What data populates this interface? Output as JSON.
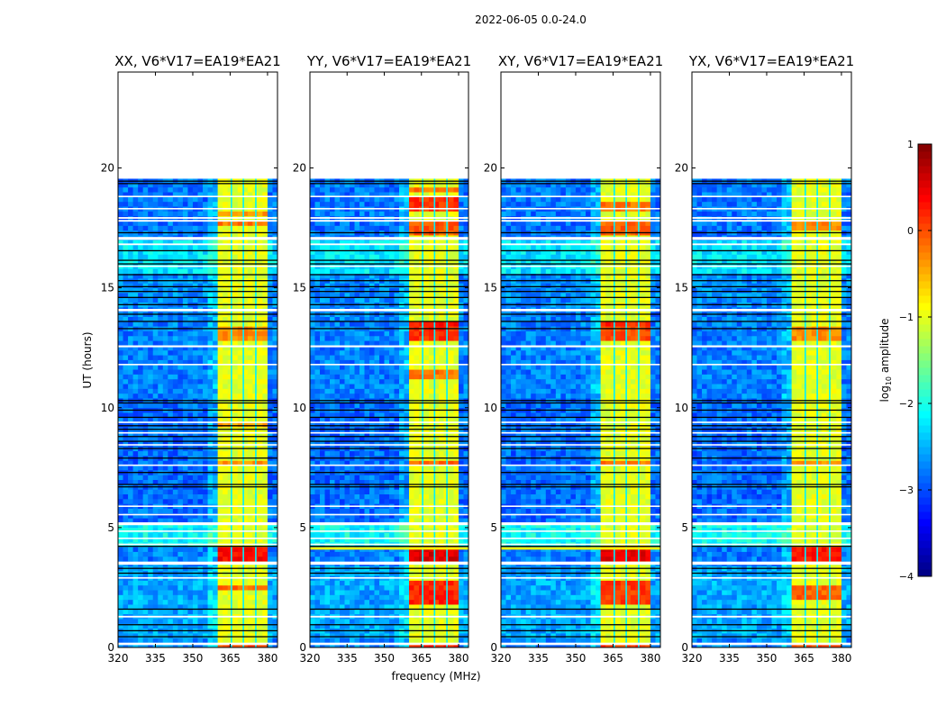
{
  "chart_data": {
    "type": "heatmap",
    "suptitle": "2022-06-05 0.0-24.0",
    "xlabel": "frequency (MHz)",
    "ylabel": "UT (hours)",
    "xlim": [
      320,
      384
    ],
    "ylim": [
      0,
      24
    ],
    "xticks": [
      "320",
      "335",
      "350",
      "365",
      "380"
    ],
    "xtick_values": [
      320,
      335,
      350,
      365,
      380
    ],
    "yticks": [
      "0",
      "5",
      "10",
      "15",
      "20"
    ],
    "ytick_values": [
      0,
      5,
      10,
      15,
      20
    ],
    "data_time_range": [
      0.0,
      19.55
    ],
    "colorbar": {
      "label_main": "log",
      "label_sub": "10",
      "label_rest": " amplitude",
      "range": [
        -4,
        1
      ],
      "ticks": [
        "−4",
        "−3",
        "−2",
        "−1",
        "0",
        "1"
      ],
      "tick_values": [
        -4,
        -3,
        -2,
        -1,
        0,
        1
      ],
      "colormap": "jet"
    },
    "background_level": -2.9,
    "background_segments": [
      [
        0.0,
        0.4,
        -2.7
      ],
      [
        0.4,
        3.5,
        -2.55
      ],
      [
        3.5,
        4.25,
        -2.75
      ],
      [
        4.25,
        5.2,
        -2.1
      ],
      [
        5.2,
        10.3,
        -2.85
      ],
      [
        10.3,
        14.1,
        -2.75
      ],
      [
        14.1,
        15.6,
        -2.7
      ],
      [
        15.6,
        16.9,
        -2.25
      ],
      [
        16.9,
        19.55,
        -2.8
      ]
    ],
    "rfi_band": {
      "f_start": 360.5,
      "f_end": 380.0,
      "level": -1.0,
      "separators_mhz": [
        365.5,
        370.3,
        375.3
      ],
      "separator_level": -2.2
    },
    "white_gaps_hours": [
      [
        0.1,
        0.2
      ],
      [
        1.25,
        1.32
      ],
      [
        2.87,
        2.93
      ],
      [
        3.45,
        3.58
      ],
      [
        4.28,
        4.33
      ],
      [
        4.53,
        4.58
      ],
      [
        4.83,
        4.88
      ],
      [
        5.1,
        5.22
      ],
      [
        5.52,
        5.57
      ],
      [
        5.87,
        5.92
      ],
      [
        7.58,
        7.63
      ],
      [
        8.43,
        8.48
      ],
      [
        8.93,
        8.98
      ],
      [
        9.38,
        9.42
      ],
      [
        12.52,
        12.6
      ],
      [
        11.78,
        11.83
      ],
      [
        14.02,
        14.12
      ],
      [
        15.88,
        15.93
      ],
      [
        16.78,
        16.85
      ],
      [
        17.0,
        17.12
      ],
      [
        17.76,
        17.83
      ],
      [
        17.88,
        17.95
      ],
      [
        18.27,
        18.33
      ],
      [
        18.78,
        18.84
      ]
    ],
    "black_lines_hours": [
      0.45,
      0.7,
      0.95,
      1.6,
      3.1,
      3.3,
      4.22,
      6.7,
      6.8,
      7.3,
      7.9,
      8.3,
      8.6,
      8.8,
      9.1,
      9.25,
      9.6,
      9.9,
      10.2,
      10.3,
      13.3,
      13.6,
      13.9,
      14.3,
      14.6,
      14.85,
      15.05,
      15.3,
      15.55,
      16.0,
      16.15,
      16.55,
      17.3,
      19.35,
      19.45
    ],
    "panels": [
      {
        "title": "XX, V6*V17=EA19*EA21",
        "band_hot": [
          [
            0.05,
            0.15,
            0.0
          ],
          [
            2.4,
            2.6,
            -0.15
          ],
          [
            3.55,
            4.2,
            0.35
          ],
          [
            7.7,
            7.8,
            -0.3
          ],
          [
            9.2,
            9.3,
            -0.4
          ],
          [
            12.8,
            13.3,
            -0.3
          ],
          [
            17.5,
            17.75,
            -0.2
          ],
          [
            18.0,
            18.1,
            -0.4
          ]
        ],
        "extra_rows": []
      },
      {
        "title": "YY, V6*V17=EA19*EA21",
        "band_hot": [
          [
            0.05,
            0.15,
            0.2
          ],
          [
            1.9,
            2.8,
            0.2
          ],
          [
            3.55,
            4.2,
            0.55
          ],
          [
            7.7,
            7.8,
            -0.1
          ],
          [
            11.2,
            11.5,
            -0.2
          ],
          [
            12.7,
            13.3,
            0.15
          ],
          [
            13.4,
            13.5,
            0.3
          ],
          [
            17.1,
            17.8,
            -0.05
          ],
          [
            18.1,
            18.7,
            0.15
          ],
          [
            19.0,
            19.2,
            -0.2
          ]
        ],
        "extra_rows": [
          [
            4.08,
            4.18,
            -0.8
          ]
        ]
      },
      {
        "title": "XY, V6*V17=EA19*EA21",
        "band_hot": [
          [
            0.05,
            0.15,
            0.1
          ],
          [
            1.9,
            2.8,
            0.1
          ],
          [
            3.55,
            4.2,
            0.5
          ],
          [
            7.7,
            7.8,
            -0.2
          ],
          [
            12.7,
            13.3,
            0.0
          ],
          [
            13.4,
            13.5,
            0.2
          ],
          [
            17.2,
            17.8,
            -0.1
          ],
          [
            18.2,
            18.5,
            -0.2
          ]
        ],
        "extra_rows": [
          [
            4.08,
            4.18,
            -0.8
          ]
        ]
      },
      {
        "title": "YX, V6*V17=EA19*EA21",
        "band_hot": [
          [
            0.05,
            0.15,
            0.0
          ],
          [
            2.0,
            2.7,
            -0.1
          ],
          [
            3.55,
            4.2,
            0.3
          ],
          [
            7.7,
            7.8,
            -0.3
          ],
          [
            12.8,
            13.3,
            -0.3
          ],
          [
            17.4,
            17.8,
            -0.3
          ]
        ],
        "extra_rows": []
      }
    ]
  }
}
